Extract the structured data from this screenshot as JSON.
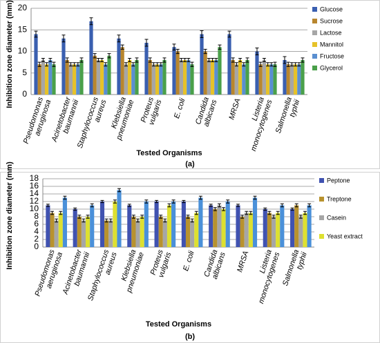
{
  "chart_data": [
    {
      "type": "bar",
      "caption": "(a)",
      "ylabel": "Inhibition zone diameter (mm)",
      "xlabel": "Tested Organisms",
      "categories": [
        "Pseudomonas aeruginosa",
        "Acinetobacter baumannii",
        "Staphylococcus aureus",
        "Klebsiella pneumoniae",
        "Proteus vulgaris",
        "E. coli",
        "Candida albicans",
        "MRSA",
        "Listeria monocytogenes",
        "Salmonella typhii"
      ],
      "ylim": [
        0,
        20
      ],
      "yticks": [
        0,
        5,
        10,
        15,
        20
      ],
      "grid": true,
      "legend": "right",
      "series": [
        {
          "name": "Glucose",
          "color": "#3a5fb0",
          "values": [
            14,
            13,
            17,
            13,
            12,
            11,
            14,
            14,
            10,
            8
          ],
          "errors": [
            0.7,
            0.8,
            0.8,
            0.8,
            0.8,
            0.7,
            0.8,
            0.7,
            0.8,
            0.8
          ]
        },
        {
          "name": "Sucrose",
          "color": "#b8862e",
          "values": [
            7,
            8,
            9,
            11,
            8,
            10,
            10,
            8,
            7,
            7
          ],
          "errors": [
            0.5,
            0.5,
            0.5,
            0.5,
            0.5,
            0.5,
            0.5,
            0.5,
            0.5,
            0.5
          ]
        },
        {
          "name": "Lactose",
          "color": "#a6a6a6",
          "values": [
            8,
            7,
            8,
            7,
            7,
            8,
            8,
            7,
            8,
            7
          ],
          "errors": [
            0.4,
            0.4,
            0.4,
            0.4,
            0.4,
            0.4,
            0.4,
            0.4,
            0.4,
            0.4
          ]
        },
        {
          "name": "Mannitol",
          "color": "#e6c229",
          "values": [
            7,
            7,
            8,
            8,
            7,
            8,
            8,
            8,
            7,
            7
          ],
          "errors": [
            0.4,
            0.4,
            0.4,
            0.4,
            0.4,
            0.4,
            0.4,
            0.4,
            0.4,
            0.4
          ]
        },
        {
          "name": "Fructose",
          "color": "#5a8fd0",
          "values": [
            8,
            7,
            7,
            7,
            7,
            8,
            8,
            7,
            7,
            7
          ],
          "errors": [
            0.4,
            0.4,
            0.4,
            0.4,
            0.4,
            0.4,
            0.4,
            0.4,
            0.4,
            0.4
          ]
        },
        {
          "name": "Glycerol",
          "color": "#4aa04a",
          "values": [
            7,
            8,
            9,
            8,
            8,
            7,
            11,
            8,
            7,
            8
          ],
          "errors": [
            0.5,
            0.5,
            0.5,
            0.5,
            0.5,
            0.5,
            0.5,
            0.5,
            0.5,
            0.5
          ]
        }
      ]
    },
    {
      "type": "bar",
      "caption": "(b)",
      "ylabel": "Inhibition zone diameter (mm)",
      "xlabel": "Tested Organisms",
      "categories": [
        "Pseudomonas aeruginosa",
        "Acinetobacter baumannii",
        "Staphylococcus aureus",
        "Klebsiella pneumoniae",
        "Proteus vulgaris",
        "E. coli",
        "Candida albicans",
        "MRSA",
        "Listeria monocytogenes",
        "Salmonella typhii"
      ],
      "ylim": [
        0,
        18
      ],
      "yticks": [
        0,
        2,
        4,
        6,
        8,
        10,
        12,
        14,
        16,
        18
      ],
      "grid": true,
      "legend": "right",
      "series": [
        {
          "name": "Peptone",
          "color": "#4052b0",
          "values": [
            11,
            10,
            12,
            11,
            12,
            12,
            11,
            11,
            10,
            10
          ],
          "errors": [
            0.3,
            0.3,
            0.3,
            0.3,
            0.3,
            0.3,
            0.3,
            0.3,
            0.3,
            0.3
          ]
        },
        {
          "name": "Treptone",
          "color": "#b8922e",
          "values": [
            9,
            8,
            7,
            8,
            8,
            8,
            10,
            8,
            9,
            11
          ],
          "errors": [
            0.4,
            0.4,
            0.4,
            0.4,
            0.4,
            0.4,
            0.4,
            0.4,
            0.4,
            0.4
          ]
        },
        {
          "name": "Casein",
          "color": "#a6a6a6",
          "values": [
            7,
            7,
            7,
            7,
            7,
            7,
            11,
            9,
            8,
            8
          ],
          "errors": [
            0.4,
            0.4,
            0.4,
            0.4,
            0.4,
            0.4,
            0.4,
            0.4,
            0.4,
            0.4
          ]
        },
        {
          "name": "Yeast extract",
          "color": "#dde030",
          "values": [
            9,
            8,
            12,
            8,
            11,
            9,
            10,
            9,
            9,
            9
          ],
          "errors": [
            0.4,
            0.4,
            0.4,
            0.4,
            0.4,
            0.4,
            0.4,
            0.4,
            0.4,
            0.4
          ]
        },
        {
          "name": null,
          "color": "#4a90d9",
          "values": [
            13,
            11,
            15,
            12,
            12,
            13,
            12,
            13,
            11,
            11
          ],
          "errors": [
            0.4,
            0.4,
            0.4,
            0.4,
            0.4,
            0.4,
            0.4,
            0.4,
            0.4,
            0.4
          ]
        }
      ]
    }
  ]
}
